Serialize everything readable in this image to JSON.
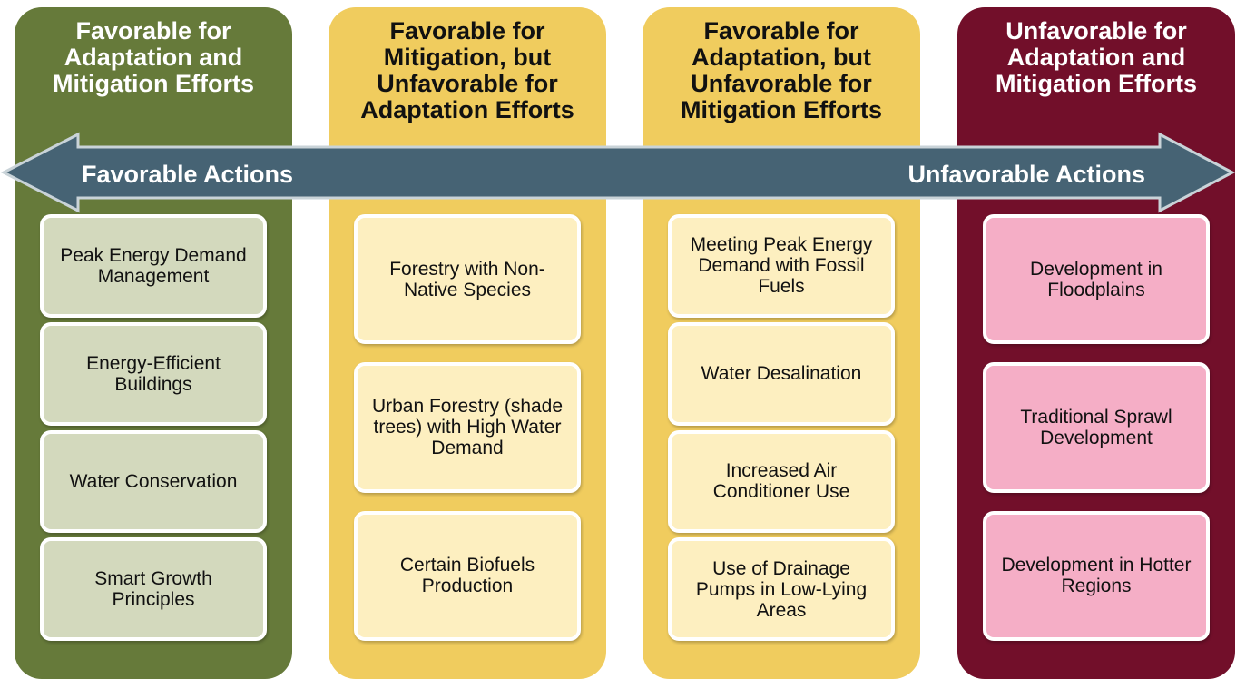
{
  "columns": [
    {
      "title": "Favorable for Adaptation and Mitigation Efforts",
      "items": [
        "Peak Energy Demand Management",
        "Energy-Efficient Buildings",
        "Water Conservation",
        "Smart Growth Principles"
      ]
    },
    {
      "title": "Favorable for Mitigation, but Unfavorable for Adaptation Efforts",
      "items": [
        "Forestry with Non-Native Species",
        "Urban Forestry (shade trees) with High Water Demand",
        "Certain Biofuels Production"
      ]
    },
    {
      "title": "Favorable for Adaptation, but Unfavorable for Mitigation Efforts",
      "items": [
        "Meeting Peak Energy Demand with Fossil Fuels",
        "Water Desalination",
        "Increased Air Conditioner Use",
        "Use of Drainage Pumps in Low-Lying Areas"
      ]
    },
    {
      "title": "Unfavorable for Adaptation and Mitigation Efforts",
      "items": [
        "Development in Floodplains",
        "Traditional Sprawl Development",
        "Development in Hotter Regions"
      ]
    }
  ],
  "arrow": {
    "left_label": "Favorable Actions",
    "right_label": "Unfavorable Actions"
  }
}
